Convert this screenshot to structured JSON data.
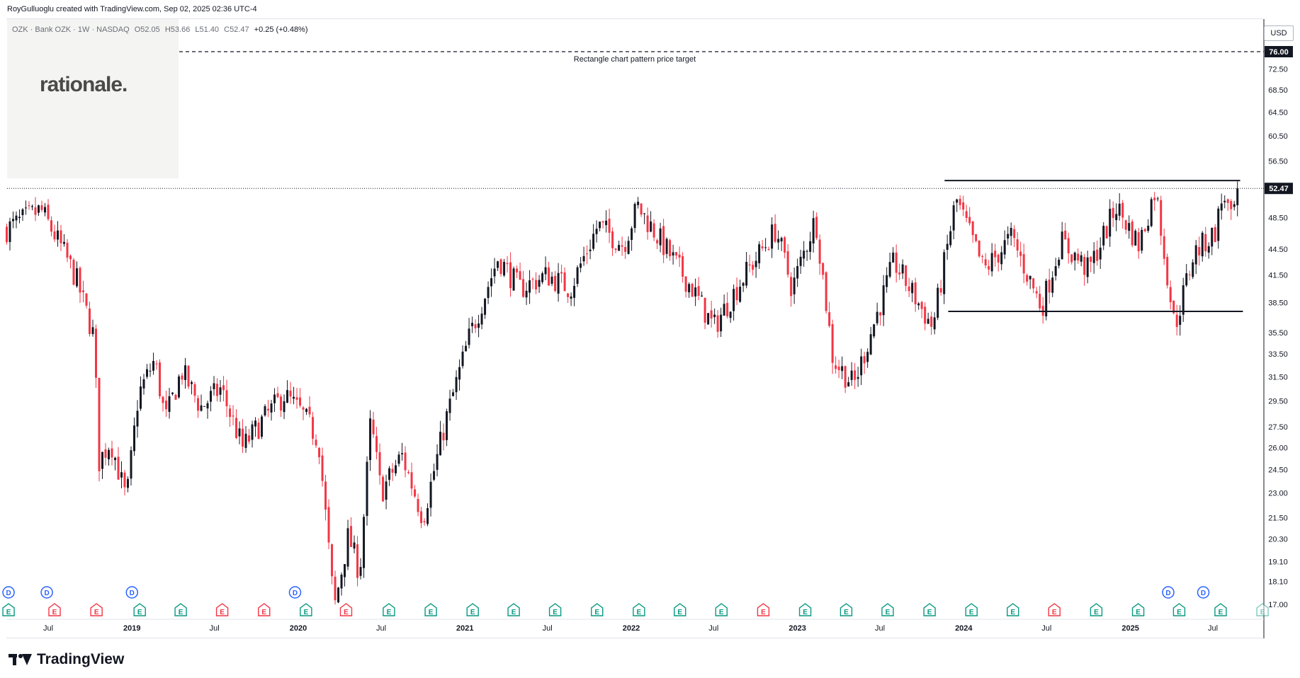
{
  "header": {
    "created_by": "RoyGulluoglu created with TradingView.com, Sep 02, 2025 02:36 UTC-4"
  },
  "symbol": {
    "name": "OZK · Bank OZK · 1W · NASDAQ",
    "open": "O52.05",
    "high": "H53.66",
    "low": "L51.40",
    "close": "C52.47",
    "change": "+0.25 (+0.48%)"
  },
  "logo": {
    "text": "rationale."
  },
  "footer": {
    "brand": "TradingView"
  },
  "colors": {
    "up": "#131722",
    "down": "#f23645",
    "dividend": "#2962ff",
    "earnings": "#089981",
    "earnings_missed": "#f23645"
  },
  "chart_data": {
    "type": "candlestick",
    "currency": "USD",
    "scale": "log",
    "last_price": 52.47,
    "y_ticks": [
      17.0,
      18.1,
      19.1,
      20.3,
      21.5,
      23.0,
      24.5,
      26.0,
      27.5,
      29.5,
      31.5,
      33.5,
      35.5,
      38.5,
      41.5,
      44.5,
      48.5,
      52.5,
      56.5,
      60.5,
      64.5,
      68.5,
      72.5,
      76.0
    ],
    "y_tick_labels": [
      "17.00",
      "18.10",
      "19.10",
      "20.30",
      "21.50",
      "23.00",
      "24.50",
      "26.00",
      "27.50",
      "29.50",
      "31.50",
      "33.50",
      "35.50",
      "38.50",
      "41.50",
      "44.50",
      "48.50",
      "52.47",
      "56.50",
      "60.50",
      "64.50",
      "68.50",
      "72.50",
      "76.00"
    ],
    "x_tick_labels": [
      {
        "label": "Jul",
        "date": "2018-07-01",
        "bold": false
      },
      {
        "label": "2019",
        "date": "2019-01-01",
        "bold": true
      },
      {
        "label": "Jul",
        "date": "2019-07-01",
        "bold": false
      },
      {
        "label": "2020",
        "date": "2020-01-01",
        "bold": true
      },
      {
        "label": "Jul",
        "date": "2020-07-01",
        "bold": false
      },
      {
        "label": "2021",
        "date": "2021-01-01",
        "bold": true
      },
      {
        "label": "Jul",
        "date": "2021-07-01",
        "bold": false
      },
      {
        "label": "2022",
        "date": "2022-01-01",
        "bold": true
      },
      {
        "label": "Jul",
        "date": "2022-07-01",
        "bold": false
      },
      {
        "label": "2023",
        "date": "2023-01-01",
        "bold": true
      },
      {
        "label": "Jul",
        "date": "2023-07-01",
        "bold": false
      },
      {
        "label": "2024",
        "date": "2024-01-01",
        "bold": true
      },
      {
        "label": "Jul",
        "date": "2024-07-01",
        "bold": false
      },
      {
        "label": "2025",
        "date": "2025-01-01",
        "bold": true
      },
      {
        "label": "Jul",
        "date": "2025-07-01",
        "bold": false
      }
    ],
    "price_path": [
      [
        "2018-04-01",
        47.0
      ],
      [
        "2018-06-15",
        49.5
      ],
      [
        "2018-08-01",
        44.5
      ],
      [
        "2018-09-01",
        41.0
      ],
      [
        "2018-10-10",
        35.0
      ],
      [
        "2018-10-20",
        25.0
      ],
      [
        "2018-11-15",
        26.5
      ],
      [
        "2018-12-20",
        22.5
      ],
      [
        "2019-01-15",
        30.0
      ],
      [
        "2019-02-20",
        33.0
      ],
      [
        "2019-03-15",
        28.0
      ],
      [
        "2019-04-20",
        32.0
      ],
      [
        "2019-06-01",
        29.0
      ],
      [
        "2019-07-15",
        30.5
      ],
      [
        "2019-09-01",
        26.0
      ],
      [
        "2019-10-15",
        28.0
      ],
      [
        "2019-12-01",
        30.0
      ],
      [
        "2020-01-10",
        28.5
      ],
      [
        "2020-02-15",
        26.5
      ],
      [
        "2020-03-20",
        16.8
      ],
      [
        "2020-04-20",
        20.5
      ],
      [
        "2020-05-15",
        18.5
      ],
      [
        "2020-06-08",
        28.0
      ],
      [
        "2020-07-01",
        23.0
      ],
      [
        "2020-08-15",
        25.5
      ],
      [
        "2020-10-01",
        21.5
      ],
      [
        "2020-11-20",
        28.0
      ],
      [
        "2021-01-10",
        35.0
      ],
      [
        "2021-03-15",
        43.5
      ],
      [
        "2021-05-01",
        40.0
      ],
      [
        "2021-07-01",
        41.5
      ],
      [
        "2021-08-20",
        40.0
      ],
      [
        "2021-10-20",
        47.5
      ],
      [
        "2021-12-15",
        45.0
      ],
      [
        "2022-01-15",
        50.0
      ],
      [
        "2022-03-01",
        46.0
      ],
      [
        "2022-05-15",
        40.0
      ],
      [
        "2022-07-01",
        36.0
      ],
      [
        "2022-09-01",
        41.0
      ],
      [
        "2022-11-15",
        47.0
      ],
      [
        "2022-12-20",
        40.0
      ],
      [
        "2023-02-10",
        48.5
      ],
      [
        "2023-03-20",
        33.0
      ],
      [
        "2023-05-05",
        30.8
      ],
      [
        "2023-06-15",
        36.0
      ],
      [
        "2023-08-01",
        43.0
      ],
      [
        "2023-10-25",
        36.0
      ],
      [
        "2023-12-15",
        51.0
      ],
      [
        "2024-02-15",
        42.0
      ],
      [
        "2024-04-15",
        46.0
      ],
      [
        "2024-06-20",
        38.0
      ],
      [
        "2024-08-01",
        45.5
      ],
      [
        "2024-10-01",
        42.0
      ],
      [
        "2024-12-01",
        50.0
      ],
      [
        "2025-01-20",
        45.0
      ],
      [
        "2025-02-25",
        52.5
      ],
      [
        "2025-04-08",
        36.0
      ],
      [
        "2025-05-20",
        44.0
      ],
      [
        "2025-07-05",
        46.5
      ],
      [
        "2025-07-25",
        52.0
      ],
      [
        "2025-08-10",
        48.0
      ],
      [
        "2025-08-29",
        52.47
      ]
    ],
    "annotations": [
      {
        "type": "dashed_line",
        "price": 76.0,
        "text": "Rectangle chart pattern price target",
        "label": "76.00"
      },
      {
        "type": "dotted_line",
        "price": 52.47,
        "label": "52.47"
      },
      {
        "type": "rectangle_top",
        "price": 53.6,
        "from": "2023-11-20",
        "to": "2025-08-30"
      },
      {
        "type": "rectangle_bottom",
        "price": 37.6,
        "from": "2023-11-28",
        "to": "2025-09-05"
      }
    ],
    "events": [
      {
        "type": "D",
        "date": "2018-04-05"
      },
      {
        "type": "D",
        "date": "2018-06-28"
      },
      {
        "type": "D",
        "date": "2019-01-01"
      },
      {
        "type": "D",
        "date": "2019-12-25"
      },
      {
        "type": "D",
        "date": "2025-03-25"
      },
      {
        "type": "D",
        "date": "2025-06-10"
      },
      {
        "type": "E",
        "date": "2018-04-05",
        "missed": false
      },
      {
        "type": "E",
        "date": "2018-07-15",
        "missed": true
      },
      {
        "type": "E",
        "date": "2018-10-15",
        "missed": true
      },
      {
        "type": "E",
        "date": "2019-01-18",
        "missed": false
      },
      {
        "type": "E",
        "date": "2019-04-18",
        "missed": false
      },
      {
        "type": "E",
        "date": "2019-07-18",
        "missed": true
      },
      {
        "type": "E",
        "date": "2019-10-18",
        "missed": true
      },
      {
        "type": "E",
        "date": "2020-01-18",
        "missed": false
      },
      {
        "type": "E",
        "date": "2020-04-15",
        "missed": true
      },
      {
        "type": "E",
        "date": "2020-07-18",
        "missed": false
      },
      {
        "type": "E",
        "date": "2020-10-18",
        "missed": false
      },
      {
        "type": "E",
        "date": "2021-01-18",
        "missed": false
      },
      {
        "type": "E",
        "date": "2021-04-18",
        "missed": false
      },
      {
        "type": "E",
        "date": "2021-07-18",
        "missed": false
      },
      {
        "type": "E",
        "date": "2021-10-18",
        "missed": false
      },
      {
        "type": "E",
        "date": "2022-01-18",
        "missed": false
      },
      {
        "type": "E",
        "date": "2022-04-18",
        "missed": false
      },
      {
        "type": "E",
        "date": "2022-07-18",
        "missed": false
      },
      {
        "type": "E",
        "date": "2022-10-18",
        "missed": true
      },
      {
        "type": "E",
        "date": "2023-01-18",
        "missed": false
      },
      {
        "type": "E",
        "date": "2023-04-18",
        "missed": false
      },
      {
        "type": "E",
        "date": "2023-07-18",
        "missed": false
      },
      {
        "type": "E",
        "date": "2023-10-18",
        "missed": false
      },
      {
        "type": "E",
        "date": "2024-01-18",
        "missed": false
      },
      {
        "type": "E",
        "date": "2024-04-18",
        "missed": false
      },
      {
        "type": "E",
        "date": "2024-07-18",
        "missed": true
      },
      {
        "type": "E",
        "date": "2024-10-18",
        "missed": false
      },
      {
        "type": "E",
        "date": "2025-01-18",
        "missed": false
      },
      {
        "type": "E",
        "date": "2025-04-18",
        "missed": false
      },
      {
        "type": "E",
        "date": "2025-07-18",
        "missed": false
      },
      {
        "type": "E",
        "date": "2025-10-18",
        "missed": false,
        "upcoming": true
      }
    ]
  }
}
